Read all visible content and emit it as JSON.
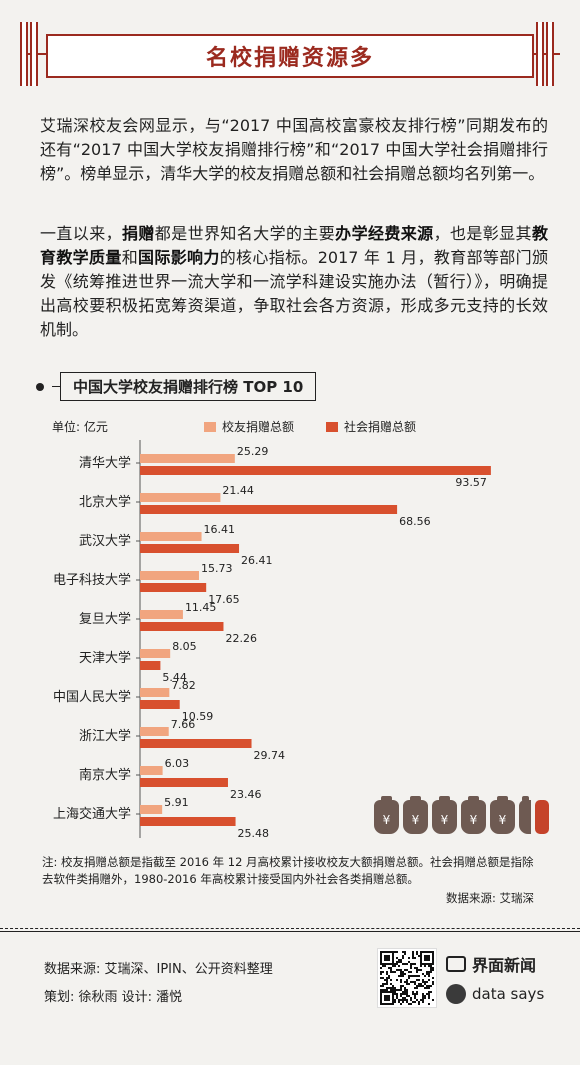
{
  "header": {
    "title": "名校捐赠资源多"
  },
  "intro": {
    "p1": "艾瑞深校友会网显示，与“2017 中国高校富豪校友排行榜”同期发布的还有“2017 中国大学校友捐赠排行榜”和“2017 中国大学社会捐赠排行榜”。榜单显示，清华大学的校友捐赠总额和社会捐赠总额均名列第一。",
    "p2_parts": [
      {
        "t": "一直以来，",
        "b": false
      },
      {
        "t": "捐赠",
        "b": true
      },
      {
        "t": "都是世界知名大学的主要",
        "b": false
      },
      {
        "t": "办学经费来源",
        "b": true
      },
      {
        "t": "，也是彰显其",
        "b": false
      },
      {
        "t": "教育教学质量",
        "b": true
      },
      {
        "t": "和",
        "b": false
      },
      {
        "t": "国际影响力",
        "b": true
      },
      {
        "t": "的核心指标。2017 年 1 月，教育部等部门颁发《统筹推进世界一流大学和一流学科建设实施办法（暂行）》，明确提出高校要积极拓宽筹资渠道，争取社会各方资源，形成多元支持的长效机制。",
        "b": false
      }
    ]
  },
  "chart_title": "中国大学校友捐赠排行榜 TOP 10",
  "unit": "单位: 亿元",
  "colors": {
    "alumni": "#f1a57f",
    "social": "#d8502e",
    "accent": "#9b2a1f"
  },
  "chart_data": {
    "type": "bar",
    "orientation": "horizontal",
    "title": "中国大学校友捐赠排行榜 TOP 10",
    "ylabel": "单位: 亿元",
    "categories": [
      "清华大学",
      "北京大学",
      "武汉大学",
      "电子科技大学",
      "复旦大学",
      "天津大学",
      "中国人民大学",
      "浙江大学",
      "南京大学",
      "上海交通大学"
    ],
    "series": [
      {
        "name": "校友捐赠总额",
        "values": [
          25.29,
          21.44,
          16.41,
          15.73,
          11.45,
          8.05,
          7.82,
          7.66,
          6.03,
          5.91
        ]
      },
      {
        "name": "社会捐赠总额",
        "values": [
          93.57,
          68.56,
          26.41,
          17.65,
          22.26,
          5.44,
          10.59,
          29.74,
          23.46,
          25.48
        ]
      }
    ],
    "legend": "top",
    "grid": false
  },
  "bags": [
    "¥",
    "¥",
    "¥",
    "¥",
    "¥"
  ],
  "note": "注: 校友捐赠总额是指截至 2016 年 12 月高校累计接收校友大额捐赠总额。社会捐赠总额是指除去软件类捐赠外，1980-2016 年高校累计接受国内外社会各类捐赠总额。",
  "note_source": "数据来源: 艾瑞深",
  "footer": {
    "source": "数据来源: 艾瑞深、IPIN、公开资料整理",
    "credit": "策划: 徐秋雨    设计: 潘悦",
    "brand1": "界面新闻",
    "brand2": "data says"
  }
}
